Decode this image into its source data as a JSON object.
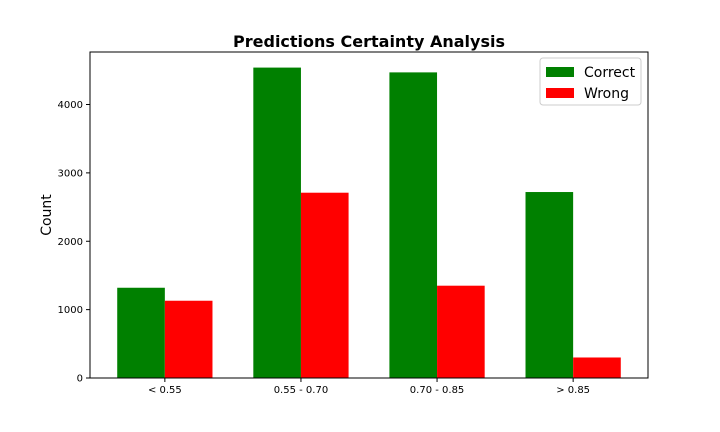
{
  "chart_data": {
    "type": "bar",
    "title": "Predictions Certainty Analysis",
    "xlabel": "",
    "ylabel": "Count",
    "categories": [
      "< 0.55",
      "0.55 - 0.70",
      "0.70 - 0.85",
      "> 0.85"
    ],
    "series": [
      {
        "name": "Correct",
        "color": "#008000",
        "values": [
          1320,
          4540,
          4470,
          2720
        ]
      },
      {
        "name": "Wrong",
        "color": "#ff0000",
        "values": [
          1130,
          2710,
          1350,
          300
        ]
      }
    ],
    "ylim": [
      0,
      4768
    ],
    "yticks": [
      0,
      1000,
      2000,
      3000,
      4000
    ],
    "ytick_labels": [
      "0",
      "1000",
      "2000",
      "3000",
      "4000"
    ],
    "grid": false,
    "legend_position": "top-right"
  }
}
